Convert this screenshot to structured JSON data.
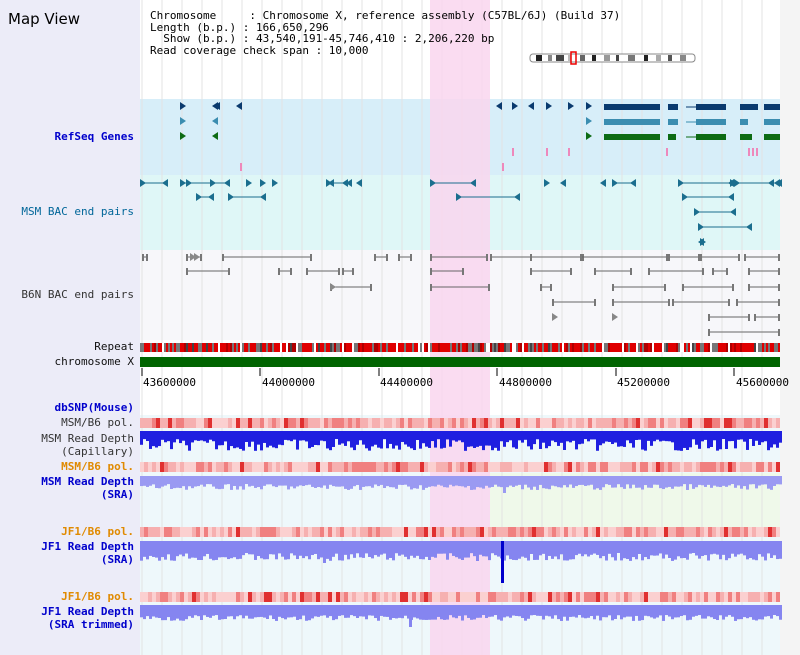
{
  "title": "Map View",
  "info": {
    "line1": "Chromosome     : Chromosome X, reference assembly (C57BL/6J) (Build 37)",
    "line2": "Length (b.p.) : 166,650,296",
    "line3": "  Show (b.p.) : 43,540,191-45,746,410 : 2,206,220 bp",
    "line4": "Read coverage check span : 10,000"
  },
  "tracks": {
    "refseq": "RefSeq Genes",
    "msm_bac": "MSM BAC end pairs",
    "b6n_bac": "B6N BAC end pairs",
    "repeat": "Repeat",
    "chromosome": "chromosome X",
    "dbsnp": "dbSNP(Mouse)",
    "msm_pol1": "MSM/B6 pol.",
    "msm_depth_cap_1": "MSM Read Depth",
    "msm_depth_cap_2": "(Capillary)",
    "msm_pol2": "MSM/B6 pol.",
    "msm_depth_sra_1": "MSM Read Depth",
    "msm_depth_sra_2": "(SRA)",
    "jf1_pol1": "JF1/B6 pol.",
    "jf1_depth_sra_1": "JF1 Read Depth",
    "jf1_depth_sra_2": "(SRA)",
    "jf1_pol2": "JF1/B6 pol.",
    "jf1_depth_trim_1": "JF1 Read Depth",
    "jf1_depth_trim_2": "(SRA trimmed)"
  },
  "axis": {
    "ticks": [
      "43600000",
      "44000000",
      "44400000",
      "44800000",
      "45200000",
      "45600000"
    ]
  },
  "colors": {
    "highlight": "#f9d6ef",
    "refseq_bg": "#d7eef9",
    "msm_bg": "#dff7f7",
    "gene_dark": "#0a3a6e",
    "gene_mid": "#3b8db0",
    "gene_green": "#0d6b14",
    "chrom_green": "#006400",
    "depth_blue": "#1f1fe0",
    "depth_light": "#8585f0",
    "pol_pink": "#f4a0a0"
  }
}
